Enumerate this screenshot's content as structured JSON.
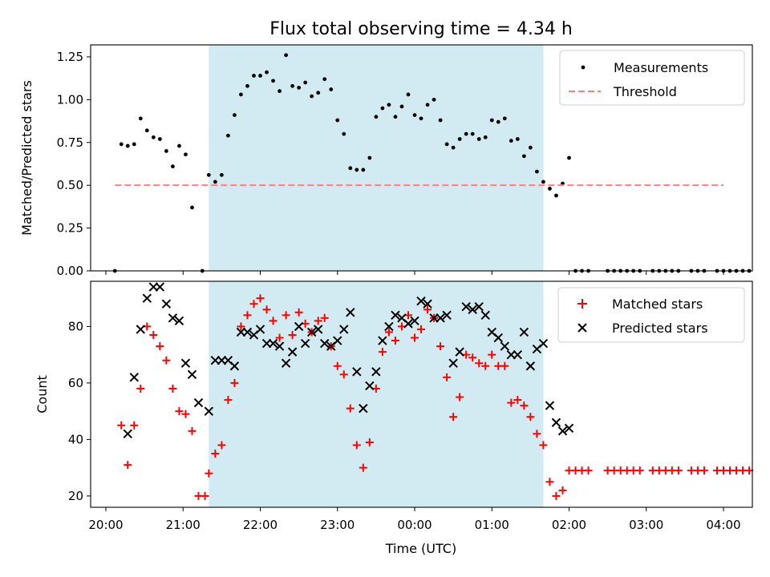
{
  "chart_data": [
    {
      "type": "scatter",
      "title": "Flux total observing time = 4.34 h",
      "ylabel": "Matched/Predicted stars",
      "xlabel": "",
      "ylim": [
        0,
        1.32
      ],
      "yticks": [
        0.0,
        0.25,
        0.5,
        0.75,
        1.0,
        1.25
      ],
      "yticklabels": [
        "0.00",
        "0.25",
        "0.50",
        "0.75",
        "1.00",
        "1.25"
      ],
      "grid": false,
      "legend": "top-right",
      "shaded_span": {
        "start": "21:20",
        "end": "01:40",
        "color": "#add8e6"
      },
      "series": [
        {
          "name": "Measurements",
          "marker": "dot",
          "color": "#000000",
          "points": [
            [
              "20:07",
              0.0
            ],
            [
              "20:12",
              0.74
            ],
            [
              "20:17",
              0.73
            ],
            [
              "20:22",
              0.74
            ],
            [
              "20:27",
              0.89
            ],
            [
              "20:32",
              0.82
            ],
            [
              "20:37",
              0.78
            ],
            [
              "20:42",
              0.77
            ],
            [
              "20:47",
              0.7
            ],
            [
              "20:52",
              0.61
            ],
            [
              "20:57",
              0.73
            ],
            [
              "21:02",
              0.68
            ],
            [
              "21:07",
              0.37
            ],
            [
              "21:15",
              0.0
            ],
            [
              "21:20",
              0.56
            ],
            [
              "21:25",
              0.52
            ],
            [
              "21:30",
              0.56
            ],
            [
              "21:35",
              0.79
            ],
            [
              "21:40",
              0.91
            ],
            [
              "21:45",
              1.03
            ],
            [
              "21:50",
              1.08
            ],
            [
              "21:55",
              1.14
            ],
            [
              "22:00",
              1.14
            ],
            [
              "22:05",
              1.16
            ],
            [
              "22:10",
              1.11
            ],
            [
              "22:15",
              1.05
            ],
            [
              "22:20",
              1.26
            ],
            [
              "22:25",
              1.08
            ],
            [
              "22:30",
              1.07
            ],
            [
              "22:35",
              1.1
            ],
            [
              "22:40",
              1.02
            ],
            [
              "22:45",
              1.04
            ],
            [
              "22:50",
              1.12
            ],
            [
              "22:55",
              1.06
            ],
            [
              "23:00",
              0.88
            ],
            [
              "23:05",
              0.8
            ],
            [
              "23:10",
              0.6
            ],
            [
              "23:15",
              0.59
            ],
            [
              "23:20",
              0.59
            ],
            [
              "23:25",
              0.66
            ],
            [
              "23:30",
              0.9
            ],
            [
              "23:35",
              0.95
            ],
            [
              "23:40",
              0.97
            ],
            [
              "23:45",
              0.9
            ],
            [
              "23:50",
              0.96
            ],
            [
              "23:55",
              1.03
            ],
            [
              "00:00",
              0.91
            ],
            [
              "00:05",
              0.89
            ],
            [
              "00:10",
              0.97
            ],
            [
              "00:15",
              1.0
            ],
            [
              "00:20",
              0.88
            ],
            [
              "00:25",
              0.74
            ],
            [
              "00:30",
              0.72
            ],
            [
              "00:35",
              0.77
            ],
            [
              "00:40",
              0.8
            ],
            [
              "00:45",
              0.8
            ],
            [
              "00:50",
              0.77
            ],
            [
              "00:55",
              0.78
            ],
            [
              "01:00",
              0.88
            ],
            [
              "01:05",
              0.87
            ],
            [
              "01:10",
              0.89
            ],
            [
              "01:15",
              0.76
            ],
            [
              "01:20",
              0.77
            ],
            [
              "01:25",
              0.67
            ],
            [
              "01:30",
              0.72
            ],
            [
              "01:35",
              0.58
            ],
            [
              "01:40",
              0.52
            ],
            [
              "01:45",
              0.48
            ],
            [
              "01:50",
              0.44
            ],
            [
              "01:55",
              0.51
            ],
            [
              "02:00",
              0.66
            ],
            [
              "02:05",
              0.0
            ],
            [
              "02:10",
              0.0
            ],
            [
              "02:15",
              0.0
            ],
            [
              "02:30",
              0.0
            ],
            [
              "02:35",
              0.0
            ],
            [
              "02:40",
              0.0
            ],
            [
              "02:45",
              0.0
            ],
            [
              "02:50",
              0.0
            ],
            [
              "02:55",
              0.0
            ],
            [
              "03:05",
              0.0
            ],
            [
              "03:10",
              0.0
            ],
            [
              "03:15",
              0.0
            ],
            [
              "03:20",
              0.0
            ],
            [
              "03:25",
              0.0
            ],
            [
              "03:35",
              0.0
            ],
            [
              "03:40",
              0.0
            ],
            [
              "03:45",
              0.0
            ],
            [
              "03:55",
              0.0
            ],
            [
              "04:00",
              0.0
            ],
            [
              "04:05",
              0.0
            ],
            [
              "04:10",
              0.0
            ],
            [
              "04:15",
              0.0
            ],
            [
              "04:20",
              0.0
            ]
          ]
        },
        {
          "name": "Threshold",
          "line": "dashed",
          "color": "#ff7f7f",
          "y": 0.5,
          "x_range": [
            "20:07",
            "04:00"
          ]
        }
      ]
    },
    {
      "type": "scatter",
      "title": "",
      "xlabel": "Time (UTC)",
      "ylabel": "Count",
      "ylim": [
        16,
        96
      ],
      "yticks": [
        20,
        40,
        60,
        80
      ],
      "yticklabels": [
        "20",
        "40",
        "60",
        "80"
      ],
      "xticklabels": [
        "20:00",
        "21:00",
        "22:00",
        "23:00",
        "00:00",
        "01:00",
        "02:00",
        "03:00",
        "04:00"
      ],
      "grid": false,
      "legend": "top-right",
      "shaded_span": {
        "start": "21:20",
        "end": "01:40",
        "color": "#add8e6"
      },
      "series": [
        {
          "name": "Matched stars",
          "marker": "plus",
          "color": "#ff0000",
          "points": [
            [
              "20:12",
              45
            ],
            [
              "20:17",
              31
            ],
            [
              "20:22",
              45
            ],
            [
              "20:27",
              58
            ],
            [
              "20:32",
              80
            ],
            [
              "20:37",
              77
            ],
            [
              "20:42",
              73
            ],
            [
              "20:47",
              68
            ],
            [
              "20:52",
              58
            ],
            [
              "20:57",
              50
            ],
            [
              "21:02",
              49
            ],
            [
              "21:07",
              43
            ],
            [
              "21:12",
              20
            ],
            [
              "21:17",
              20
            ],
            [
              "21:20",
              28
            ],
            [
              "21:25",
              35
            ],
            [
              "21:30",
              38
            ],
            [
              "21:35",
              54
            ],
            [
              "21:40",
              60
            ],
            [
              "21:45",
              80
            ],
            [
              "21:50",
              84
            ],
            [
              "21:55",
              88
            ],
            [
              "22:00",
              90
            ],
            [
              "22:05",
              86
            ],
            [
              "22:10",
              82
            ],
            [
              "22:15",
              76
            ],
            [
              "22:20",
              84
            ],
            [
              "22:25",
              77
            ],
            [
              "22:30",
              85
            ],
            [
              "22:35",
              81
            ],
            [
              "22:40",
              78
            ],
            [
              "22:45",
              82
            ],
            [
              "22:50",
              83
            ],
            [
              "22:55",
              73
            ],
            [
              "23:00",
              66
            ],
            [
              "23:05",
              63
            ],
            [
              "23:10",
              51
            ],
            [
              "23:15",
              38
            ],
            [
              "23:20",
              30
            ],
            [
              "23:25",
              39
            ],
            [
              "23:30",
              58
            ],
            [
              "23:35",
              71
            ],
            [
              "23:40",
              78
            ],
            [
              "23:45",
              75
            ],
            [
              "23:50",
              80
            ],
            [
              "23:55",
              84
            ],
            [
              "00:00",
              76
            ],
            [
              "00:05",
              79
            ],
            [
              "00:10",
              86
            ],
            [
              "00:15",
              83
            ],
            [
              "00:20",
              73
            ],
            [
              "00:25",
              62
            ],
            [
              "00:30",
              48
            ],
            [
              "00:35",
              55
            ],
            [
              "00:40",
              70
            ],
            [
              "00:45",
              69
            ],
            [
              "00:50",
              67
            ],
            [
              "00:55",
              66
            ],
            [
              "01:00",
              70
            ],
            [
              "01:05",
              66
            ],
            [
              "01:10",
              66
            ],
            [
              "01:15",
              53
            ],
            [
              "01:20",
              54
            ],
            [
              "01:25",
              52
            ],
            [
              "01:30",
              48
            ],
            [
              "01:35",
              42
            ],
            [
              "01:40",
              38
            ],
            [
              "01:45",
              25
            ],
            [
              "01:50",
              20
            ],
            [
              "01:55",
              22
            ],
            [
              "02:00",
              29
            ],
            [
              "02:05",
              29
            ],
            [
              "02:10",
              29
            ],
            [
              "02:15",
              29
            ],
            [
              "02:30",
              29
            ],
            [
              "02:35",
              29
            ],
            [
              "02:40",
              29
            ],
            [
              "02:45",
              29
            ],
            [
              "02:50",
              29
            ],
            [
              "02:55",
              29
            ],
            [
              "03:05",
              29
            ],
            [
              "03:10",
              29
            ],
            [
              "03:15",
              29
            ],
            [
              "03:20",
              29
            ],
            [
              "03:25",
              29
            ],
            [
              "03:35",
              29
            ],
            [
              "03:40",
              29
            ],
            [
              "03:45",
              29
            ],
            [
              "03:55",
              29
            ],
            [
              "04:00",
              29
            ],
            [
              "04:05",
              29
            ],
            [
              "04:10",
              29
            ],
            [
              "04:15",
              29
            ],
            [
              "04:20",
              29
            ]
          ]
        },
        {
          "name": "Predicted stars",
          "marker": "x",
          "color": "#000000",
          "points": [
            [
              "20:17",
              42
            ],
            [
              "20:22",
              62
            ],
            [
              "20:27",
              79
            ],
            [
              "20:32",
              90
            ],
            [
              "20:37",
              94
            ],
            [
              "20:42",
              94
            ],
            [
              "20:47",
              88
            ],
            [
              "20:52",
              83
            ],
            [
              "20:57",
              82
            ],
            [
              "21:02",
              67
            ],
            [
              "21:07",
              63
            ],
            [
              "21:12",
              53
            ],
            [
              "21:20",
              50
            ],
            [
              "21:25",
              68
            ],
            [
              "21:30",
              68
            ],
            [
              "21:35",
              68
            ],
            [
              "21:40",
              66
            ],
            [
              "21:45",
              78
            ],
            [
              "21:50",
              78
            ],
            [
              "21:55",
              77
            ],
            [
              "22:00",
              79
            ],
            [
              "22:05",
              74
            ],
            [
              "22:10",
              74
            ],
            [
              "22:15",
              73
            ],
            [
              "22:20",
              67
            ],
            [
              "22:25",
              71
            ],
            [
              "22:30",
              80
            ],
            [
              "22:35",
              74
            ],
            [
              "22:40",
              78
            ],
            [
              "22:45",
              79
            ],
            [
              "22:50",
              74
            ],
            [
              "22:55",
              73
            ],
            [
              "23:00",
              75
            ],
            [
              "23:05",
              79
            ],
            [
              "23:10",
              85
            ],
            [
              "23:15",
              64
            ],
            [
              "23:20",
              51
            ],
            [
              "23:25",
              59
            ],
            [
              "23:30",
              64
            ],
            [
              "23:35",
              75
            ],
            [
              "23:40",
              80
            ],
            [
              "23:45",
              84
            ],
            [
              "23:50",
              83
            ],
            [
              "23:55",
              81
            ],
            [
              "00:00",
              82
            ],
            [
              "00:05",
              89
            ],
            [
              "00:10",
              88
            ],
            [
              "00:15",
              83
            ],
            [
              "00:20",
              83
            ],
            [
              "00:25",
              84
            ],
            [
              "00:30",
              67
            ],
            [
              "00:35",
              71
            ],
            [
              "00:40",
              87
            ],
            [
              "00:45",
              86
            ],
            [
              "00:50",
              87
            ],
            [
              "00:55",
              84
            ],
            [
              "01:00",
              78
            ],
            [
              "01:05",
              76
            ],
            [
              "01:10",
              73
            ],
            [
              "01:15",
              70
            ],
            [
              "01:20",
              70
            ],
            [
              "01:25",
              78
            ],
            [
              "01:30",
              66
            ],
            [
              "01:35",
              72
            ],
            [
              "01:40",
              74
            ],
            [
              "01:45",
              52
            ],
            [
              "01:50",
              46
            ],
            [
              "01:55",
              43
            ],
            [
              "02:00",
              44
            ]
          ]
        }
      ]
    }
  ]
}
